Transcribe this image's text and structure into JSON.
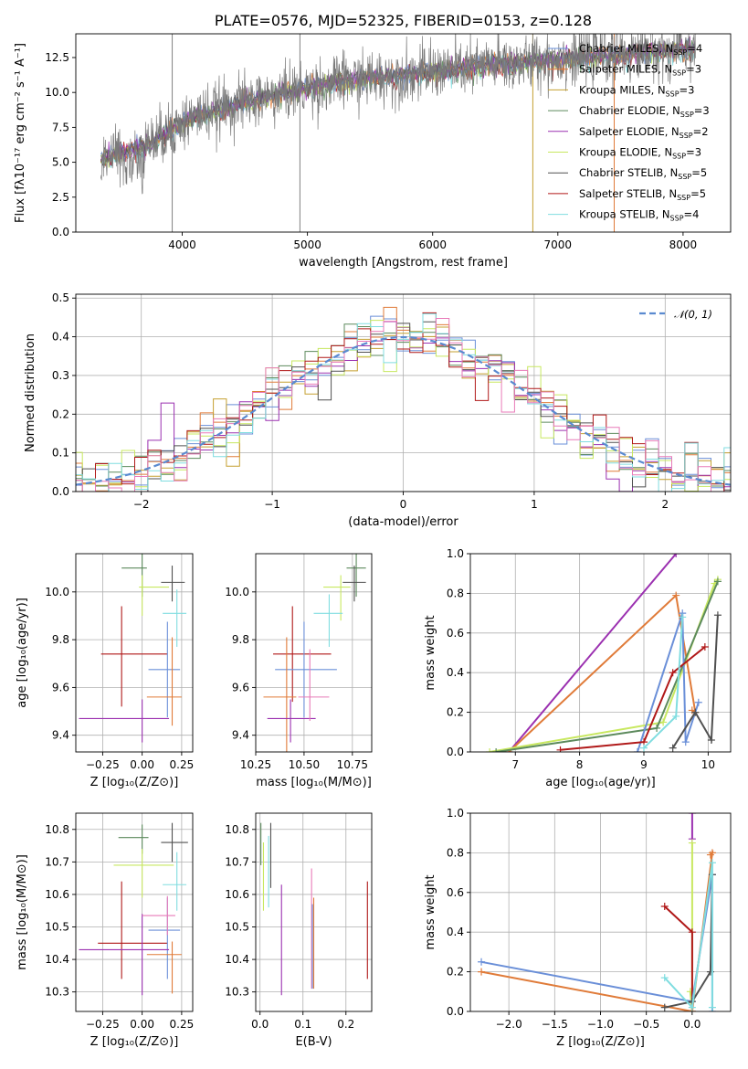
{
  "colors": {
    "chabrier_miles": "#6a8fd8",
    "salpeter_miles": "#e07b39",
    "kroupa_miles": "#c5a030",
    "chabrier_elodie": "#5c8a5c",
    "salpeter_elodie": "#9b30b0",
    "kroupa_elodie": "#c8e860",
    "chabrier_stelib": "#505050",
    "salpeter_stelib": "#b01818",
    "kroupa_stelib": "#80dde0",
    "pink": "#e87ab8",
    "normal_curve": "#5a8ad0"
  },
  "chart_data": [
    {
      "id": "spectrum",
      "type": "line",
      "title": "PLATE=0576, MJD=52325, FIBERID=0153, z=0.128",
      "xlabel": "wavelength [Angstrom, rest frame]",
      "ylabel": "Flux [fλ10⁻¹⁷ erg cm⁻² s⁻¹ A⁻¹]",
      "xlim": [
        3150,
        8380
      ],
      "ylim": [
        0,
        14.2
      ],
      "xticks": [
        "4000",
        "5000",
        "6000",
        "7000",
        "8000"
      ],
      "yticks": [
        "0.0",
        "2.5",
        "5.0",
        "7.5",
        "10.0",
        "12.5"
      ],
      "xtick_values": [
        4000,
        5000,
        6000,
        7000,
        8000
      ],
      "ytick_values": [
        0,
        2.5,
        5,
        7.5,
        10,
        12.5
      ],
      "legend_position": "right",
      "legend": [
        {
          "label": "Chabrier MILES, N",
          "sub": "SSP",
          "suffix": "=4",
          "color_key": "chabrier_miles"
        },
        {
          "label": "Salpeter MILES, N",
          "sub": "SSP",
          "suffix": "=3",
          "color_key": "salpeter_miles"
        },
        {
          "label": "Kroupa MILES, N",
          "sub": "SSP",
          "suffix": "=3",
          "color_key": "kroupa_miles"
        },
        {
          "label": "Chabrier ELODIE, N",
          "sub": "SSP",
          "suffix": "=3",
          "color_key": "chabrier_elodie"
        },
        {
          "label": "Salpeter ELODIE, N",
          "sub": "SSP",
          "suffix": "=2",
          "color_key": "salpeter_elodie"
        },
        {
          "label": "Kroupa ELODIE, N",
          "sub": "SSP",
          "suffix": "=3",
          "color_key": "kroupa_elodie"
        },
        {
          "label": "Chabrier STELIB, N",
          "sub": "SSP",
          "suffix": "=5",
          "color_key": "chabrier_stelib"
        },
        {
          "label": "Salpeter STELIB, N",
          "sub": "SSP",
          "suffix": "=5",
          "color_key": "salpeter_stelib"
        },
        {
          "label": "Kroupa STELIB, N",
          "sub": "SSP",
          "suffix": "=4",
          "color_key": "kroupa_stelib"
        }
      ],
      "continuum": {
        "x": [
          3350,
          3500,
          3650,
          3800,
          3950,
          4100,
          4300,
          4500,
          4700,
          4900,
          5100,
          5300,
          5500,
          5700,
          5900,
          6100,
          6300,
          6500,
          6700,
          6900,
          7100,
          7300,
          7500,
          7700,
          7900,
          8100
        ],
        "y": [
          5.2,
          5.7,
          6.0,
          6.6,
          7.5,
          8.3,
          8.8,
          9.3,
          9.7,
          10.1,
          10.5,
          10.8,
          11.0,
          11.2,
          11.4,
          11.6,
          11.8,
          12.0,
          12.1,
          12.3,
          12.4,
          12.6,
          12.7,
          12.9,
          13.0,
          13.1
        ]
      },
      "vertical_lines_x": [
        3920,
        4940,
        6800,
        7450
      ]
    },
    {
      "id": "residuals",
      "type": "area",
      "xlabel": "(data-model)/error",
      "ylabel": "Normed distribution",
      "xlim": [
        -2.5,
        2.5
      ],
      "ylim": [
        0,
        0.51
      ],
      "xticks": [
        "−2",
        "−1",
        "0",
        "1",
        "2"
      ],
      "yticks": [
        "0.0",
        "0.1",
        "0.2",
        "0.3",
        "0.4",
        "0.5"
      ],
      "xtick_values": [
        -2,
        -1,
        0,
        1,
        2
      ],
      "ytick_values": [
        0,
        0.1,
        0.2,
        0.3,
        0.4,
        0.5
      ],
      "grid": true,
      "legend_position": "upper right",
      "legend_label": "𝒩(0, 1)",
      "bin_width": 0.1,
      "curve": "normal(0,1)"
    },
    {
      "id": "age_vs_Z",
      "type": "scatter",
      "xlabel": "Z [log₁₀(Z/Z⊙)]",
      "ylabel": "age  [log₁₀(age/yr)]",
      "xlim": [
        -0.42,
        0.32
      ],
      "ylim": [
        9.33,
        10.16
      ],
      "xticks": [
        "−0.25",
        "0.00",
        "0.25"
      ],
      "yticks": [
        "9.4",
        "9.6",
        "9.8",
        "10.0"
      ],
      "xtick_values": [
        -0.25,
        0,
        0.25
      ],
      "ytick_values": [
        9.4,
        9.6,
        9.8,
        10.0
      ],
      "grid": true,
      "points": [
        {
          "x": 0.0,
          "xerr": [
            0.13,
            0.03
          ],
          "y": 10.1,
          "yerr": [
            0.12,
            0.06
          ],
          "color_key": "chabrier_elodie"
        },
        {
          "x": 0.19,
          "xerr": [
            0.07,
            0.08
          ],
          "y": 10.04,
          "yerr": [
            0.08,
            0.07
          ],
          "color_key": "chabrier_stelib"
        },
        {
          "x": 0.0,
          "xerr": [
            0.02,
            0.17
          ],
          "y": 10.02,
          "yerr": [
            0.12,
            0.05
          ],
          "color_key": "kroupa_elodie"
        },
        {
          "x": 0.22,
          "xerr": [
            0.09,
            0.06
          ],
          "y": 9.91,
          "yerr": [
            0.14,
            0.1
          ],
          "color_key": "kroupa_stelib"
        },
        {
          "x": -0.13,
          "xerr": [
            0.13,
            0.29
          ],
          "y": 9.74,
          "yerr": [
            0.22,
            0.2
          ],
          "color_key": "salpeter_stelib"
        },
        {
          "x": 0.16,
          "xerr": [
            0.12,
            0.08
          ],
          "y": 9.675,
          "yerr": [
            0.2,
            0.2
          ],
          "color_key": "chabrier_miles"
        },
        {
          "x": 0.19,
          "xerr": [
            0.16,
            0.06
          ],
          "y": 9.56,
          "yerr": [
            0.12,
            0.25
          ],
          "color_key": "salpeter_miles"
        },
        {
          "x": 0.0,
          "xerr": [
            0.4,
            0.17
          ],
          "y": 9.47,
          "yerr": [
            0.1,
            0.08
          ],
          "color_key": "salpeter_elodie"
        }
      ]
    },
    {
      "id": "age_vs_mass",
      "type": "scatter",
      "xlabel": "mass [log₁₀(M/M⊙)]",
      "ylabel": "",
      "xlim": [
        10.25,
        10.85
      ],
      "ylim": [
        9.33,
        10.16
      ],
      "xticks": [
        "10.25",
        "10.50",
        "10.75"
      ],
      "yticks": [
        "9.4",
        "9.6",
        "9.8",
        "10.0"
      ],
      "xtick_values": [
        10.25,
        10.5,
        10.75
      ],
      "ytick_values": [
        9.4,
        9.6,
        9.8,
        10.0
      ],
      "grid": true,
      "points": [
        {
          "x": 10.77,
          "xerr": [
            0.05,
            0.05
          ],
          "y": 10.1,
          "yerr": [
            0.12,
            0.06
          ],
          "color_key": "chabrier_elodie"
        },
        {
          "x": 10.76,
          "xerr": [
            0.06,
            0.06
          ],
          "y": 10.04,
          "yerr": [
            0.08,
            0.07
          ],
          "color_key": "chabrier_stelib"
        },
        {
          "x": 10.69,
          "xerr": [
            0.09,
            0.05
          ],
          "y": 10.02,
          "yerr": [
            0.14,
            0.05
          ],
          "color_key": "kroupa_elodie"
        },
        {
          "x": 10.63,
          "xerr": [
            0.08,
            0.07
          ],
          "y": 9.91,
          "yerr": [
            0.14,
            0.08
          ],
          "color_key": "kroupa_stelib"
        },
        {
          "x": 10.44,
          "xerr": [
            0.1,
            0.2
          ],
          "y": 9.74,
          "yerr": [
            0.2,
            0.2
          ],
          "color_key": "salpeter_stelib"
        },
        {
          "x": 10.5,
          "xerr": [
            0.15,
            0.17
          ],
          "y": 9.675,
          "yerr": [
            0.2,
            0.2
          ],
          "color_key": "chabrier_miles"
        },
        {
          "x": 10.41,
          "xerr": [
            0.12,
            0.05
          ],
          "y": 9.56,
          "yerr": [
            0.25,
            0.25
          ],
          "color_key": "salpeter_miles"
        },
        {
          "x": 10.43,
          "xerr": [
            0.12,
            0.13
          ],
          "y": 9.47,
          "yerr": [
            0.1,
            0.08
          ],
          "color_key": "salpeter_elodie"
        },
        {
          "x": 10.53,
          "xerr": [
            0.06,
            0.1
          ],
          "y": 9.56,
          "yerr": [
            0.1,
            0.2
          ],
          "color_key": "pink"
        }
      ]
    },
    {
      "id": "mass_weight_vs_age",
      "type": "line",
      "xlabel": "age  [log₁₀(age/yr)]",
      "ylabel": "mass weight",
      "xlim": [
        6.3,
        10.35
      ],
      "ylim": [
        0,
        1.0
      ],
      "xticks": [
        "7",
        "8",
        "9",
        "10"
      ],
      "yticks": [
        "0.0",
        "0.2",
        "0.4",
        "0.6",
        "0.8",
        "1.0"
      ],
      "xtick_values": [
        7,
        8,
        9,
        10
      ],
      "ytick_values": [
        0,
        0.2,
        0.4,
        0.6,
        0.8,
        1.0
      ],
      "grid": true,
      "series": [
        {
          "color_key": "salpeter_elodie",
          "x": [
            6.9,
            9.5
          ],
          "y": [
            0.0,
            1.0
          ]
        },
        {
          "color_key": "salpeter_miles",
          "x": [
            6.9,
            9.5,
            9.8,
            9.75
          ],
          "y": [
            0.0,
            0.79,
            0.2,
            0.21
          ]
        },
        {
          "color_key": "kroupa_elodie",
          "x": [
            6.6,
            9.3,
            10.1,
            10.15
          ],
          "y": [
            0.0,
            0.15,
            0.85,
            0.87
          ]
        },
        {
          "color_key": "chabrier_elodie",
          "x": [
            6.7,
            9.2,
            10.15
          ],
          "y": [
            0.0,
            0.12,
            0.86
          ]
        },
        {
          "color_key": "chabrier_miles",
          "x": [
            8.9,
            9.6,
            9.65,
            9.85
          ],
          "y": [
            0.0,
            0.7,
            0.05,
            0.25
          ]
        },
        {
          "color_key": "salpeter_stelib",
          "x": [
            7.7,
            9.0,
            9.45,
            9.95
          ],
          "y": [
            0.01,
            0.05,
            0.4,
            0.53
          ]
        },
        {
          "color_key": "chabrier_stelib",
          "x": [
            9.45,
            9.8,
            10.05,
            10.15
          ],
          "y": [
            0.02,
            0.2,
            0.06,
            0.69
          ]
        },
        {
          "color_key": "kroupa_stelib",
          "x": [
            9.0,
            9.5,
            9.6
          ],
          "y": [
            0.02,
            0.18,
            0.68
          ]
        }
      ]
    },
    {
      "id": "mass_vs_Z",
      "type": "scatter",
      "xlabel": "Z [log₁₀(Z/Z⊙)]",
      "ylabel": "mass [log₁₀(M/M⊙)]",
      "xlim": [
        -0.42,
        0.32
      ],
      "ylim": [
        10.24,
        10.85
      ],
      "xticks": [
        "−0.25",
        "0.00",
        "0.25"
      ],
      "yticks": [
        "10.3",
        "10.4",
        "10.5",
        "10.6",
        "10.7",
        "10.8"
      ],
      "xtick_values": [
        -0.25,
        0,
        0.25
      ],
      "ytick_values": [
        10.3,
        10.4,
        10.5,
        10.6,
        10.7,
        10.8
      ],
      "grid": true,
      "points": [
        {
          "x": 0.0,
          "xerr": [
            0.15,
            0.04
          ],
          "y": 10.775,
          "yerr": [
            0.05,
            0.04
          ],
          "color_key": "chabrier_elodie"
        },
        {
          "x": 0.19,
          "xerr": [
            0.07,
            0.1
          ],
          "y": 10.76,
          "yerr": [
            0.06,
            0.06
          ],
          "color_key": "chabrier_stelib"
        },
        {
          "x": 0.0,
          "xerr": [
            0.18,
            0.2
          ],
          "y": 10.69,
          "yerr": [
            0.1,
            0.05
          ],
          "color_key": "kroupa_elodie"
        },
        {
          "x": 0.22,
          "xerr": [
            0.09,
            0.06
          ],
          "y": 10.63,
          "yerr": [
            0.08,
            0.1
          ],
          "color_key": "kroupa_stelib"
        },
        {
          "x": -0.13,
          "xerr": [
            0.15,
            0.29
          ],
          "y": 10.45,
          "yerr": [
            0.11,
            0.19
          ],
          "color_key": "salpeter_stelib"
        },
        {
          "x": 0.16,
          "xerr": [
            0.12,
            0.08
          ],
          "y": 10.49,
          "yerr": [
            0.15,
            0.1
          ],
          "color_key": "chabrier_miles"
        },
        {
          "x": 0.19,
          "xerr": [
            0.16,
            0.06
          ],
          "y": 10.415,
          "yerr": [
            0.12,
            0.04
          ],
          "color_key": "salpeter_miles"
        },
        {
          "x": 0.0,
          "xerr": [
            0.4,
            0.17
          ],
          "y": 10.43,
          "yerr": [
            0.14,
            0.11
          ],
          "color_key": "salpeter_elodie"
        },
        {
          "x": 0.16,
          "xerr": [
            0.16,
            0.05
          ],
          "y": 10.535,
          "yerr": [
            0.06,
            0.06
          ],
          "color_key": "pink"
        }
      ]
    },
    {
      "id": "mass_vs_ebv",
      "type": "scatter",
      "xlabel": "E(B-V)",
      "ylabel": "",
      "xlim": [
        -0.01,
        0.26
      ],
      "ylim": [
        10.24,
        10.85
      ],
      "xticks": [
        "0.0",
        "0.1",
        "0.2"
      ],
      "yticks": [
        "10.3",
        "10.4",
        "10.5",
        "10.6",
        "10.7",
        "10.8"
      ],
      "xtick_values": [
        0,
        0.1,
        0.2
      ],
      "ytick_values": [
        10.3,
        10.4,
        10.5,
        10.6,
        10.7,
        10.8
      ],
      "grid": true,
      "points": [
        {
          "x": 0.002,
          "y": 10.75,
          "yerr": [
            0.06,
            0.07
          ],
          "color_key": "chabrier_elodie"
        },
        {
          "x": 0.008,
          "y": 10.7,
          "yerr": [
            0.15,
            0.06
          ],
          "color_key": "kroupa_elodie"
        },
        {
          "x": 0.02,
          "y": 10.68,
          "yerr": [
            0.12,
            0.1
          ],
          "color_key": "kroupa_stelib"
        },
        {
          "x": 0.025,
          "y": 10.74,
          "yerr": [
            0.12,
            0.08
          ],
          "color_key": "chabrier_stelib"
        },
        {
          "x": 0.05,
          "y": 10.46,
          "yerr": [
            0.17,
            0.17
          ],
          "color_key": "salpeter_elodie"
        },
        {
          "x": 0.12,
          "y": 10.5,
          "yerr": [
            0.19,
            0.18
          ],
          "color_key": "pink"
        },
        {
          "x": 0.122,
          "y": 10.45,
          "yerr": [
            0.14,
            0.12
          ],
          "color_key": "chabrier_miles"
        },
        {
          "x": 0.125,
          "y": 10.44,
          "yerr": [
            0.13,
            0.15
          ],
          "color_key": "salpeter_miles"
        },
        {
          "x": 0.25,
          "y": 10.49,
          "yerr": [
            0.15,
            0.15
          ],
          "color_key": "salpeter_stelib"
        }
      ]
    },
    {
      "id": "mass_weight_vs_Z",
      "type": "line",
      "xlabel": "Z [log₁₀(Z/Z⊙)]",
      "ylabel": "mass weight",
      "xlim": [
        -2.42,
        0.42
      ],
      "ylim": [
        0,
        1.0
      ],
      "xticks": [
        "−2.0",
        "−1.5",
        "−1.0",
        "−0.5",
        "0.0"
      ],
      "yticks": [
        "0.0",
        "0.2",
        "0.4",
        "0.6",
        "0.8",
        "1.0"
      ],
      "xtick_values": [
        -2,
        -1.5,
        -1,
        -0.5,
        0
      ],
      "ytick_values": [
        0,
        0.2,
        0.4,
        0.6,
        0.8,
        1.0
      ],
      "grid": true,
      "series": [
        {
          "color_key": "salpeter_elodie",
          "x": [
            0.0,
            0.0
          ],
          "y": [
            1.0,
            0.87
          ]
        },
        {
          "color_key": "kroupa_elodie",
          "x": [
            0.0,
            0.0,
            -0.02
          ],
          "y": [
            0.85,
            0.0,
            0.1
          ]
        },
        {
          "color_key": "salpeter_stelib",
          "x": [
            -0.3,
            0.0,
            0.0
          ],
          "y": [
            0.53,
            0.4,
            0.0
          ]
        },
        {
          "color_key": "chabrier_miles",
          "x": [
            -2.3,
            0.0,
            0.22,
            0.22
          ],
          "y": [
            0.25,
            0.05,
            0.69,
            0.0
          ]
        },
        {
          "color_key": "salpeter_miles",
          "x": [
            -2.3,
            0.0,
            0.22,
            0.2
          ],
          "y": [
            0.2,
            0.0,
            0.8,
            0.79
          ]
        },
        {
          "color_key": "chabrier_stelib",
          "x": [
            -0.3,
            0.0,
            0.2,
            0.22
          ],
          "y": [
            0.02,
            0.05,
            0.2,
            0.69
          ]
        },
        {
          "color_key": "kroupa_stelib",
          "x": [
            -0.3,
            0.0,
            0.22,
            0.22
          ],
          "y": [
            0.17,
            0.02,
            0.75,
            0.02
          ]
        }
      ]
    }
  ]
}
